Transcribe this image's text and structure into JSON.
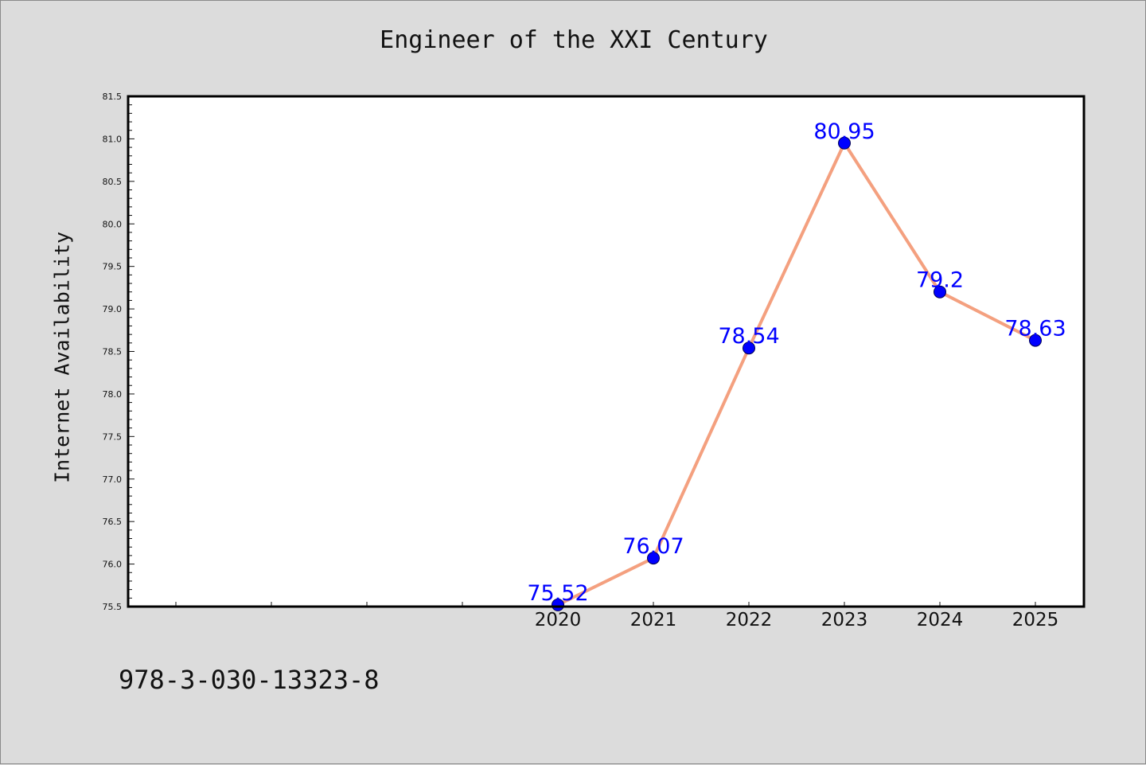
{
  "page": {
    "title": "Engineer of the XXI Century",
    "footer_code": "978-3-030-13323-8"
  },
  "chart_data": {
    "type": "line",
    "title": "Engineer of the XXI Century",
    "xlabel": "",
    "ylabel": "Internet Availability",
    "x": [
      "2020",
      "2021",
      "2022",
      "2023",
      "2024",
      "2025"
    ],
    "series": [
      {
        "values": [
          75.52,
          76.07,
          78.54,
          80.95,
          79.2,
          78.63
        ],
        "labels": [
          "75.52",
          "76.07",
          "78.54",
          "80.95",
          "79.2",
          "78.63"
        ]
      }
    ],
    "ylim": [
      75.5,
      81.5
    ],
    "yticks": [
      "75.5",
      "76.0",
      "76.5",
      "77.0",
      "77.5",
      "78.0",
      "78.5",
      "79.0",
      "79.5",
      "80.0",
      "80.5",
      "81.0",
      "81.5"
    ],
    "grid": false,
    "legend": "none",
    "colors": {
      "line": "#f4a07f",
      "marker": "#0000ff",
      "labels": "#0000ff",
      "background": "#dcdcdc",
      "plot_area": "#ffffff"
    }
  }
}
